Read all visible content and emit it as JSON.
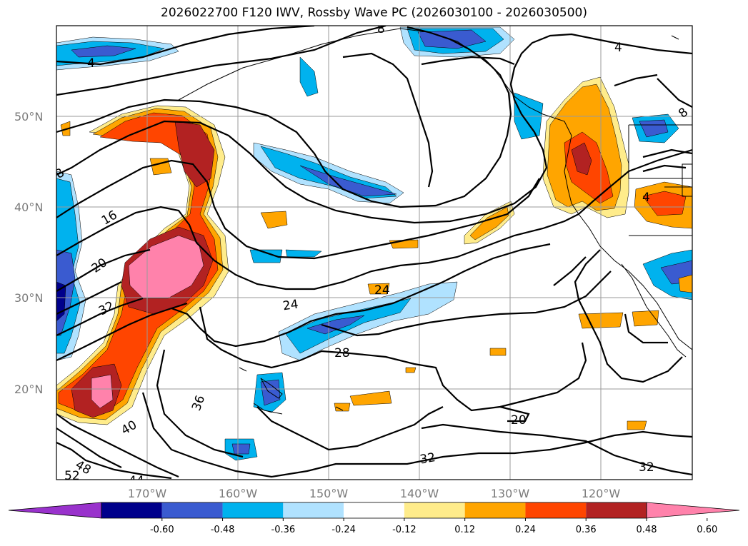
{
  "title": "2026022700 F120 IWV, Rossby Wave PC (2026030100 - 2026030500)",
  "lat_labels": [
    "50°N",
    "40°N",
    "30°N",
    "20°N"
  ],
  "lon_labels": [
    "170°W",
    "160°W",
    "150°W",
    "140°W",
    "130°W",
    "120°W"
  ],
  "contour_labels": [
    "4",
    "8",
    "8",
    "16",
    "20",
    "24",
    "24",
    "28",
    "32",
    "36",
    "40",
    "44",
    "20",
    "32",
    "32",
    "4",
    "4",
    "8",
    "48",
    "52"
  ],
  "colorbar": {
    "colors": [
      "#9932cc",
      "#00008b",
      "#3a5bd0",
      "#00b2ee",
      "#b0e2ff",
      "#ffffff",
      "#ffec8b",
      "#ffa500",
      "#ff4500",
      "#b22222",
      "#ff82ab"
    ],
    "tick_labels": [
      "-0.60",
      "-0.48",
      "-0.36",
      "-0.24",
      "-0.12",
      "0.12",
      "0.24",
      "0.36",
      "0.48",
      "0.60"
    ]
  }
}
